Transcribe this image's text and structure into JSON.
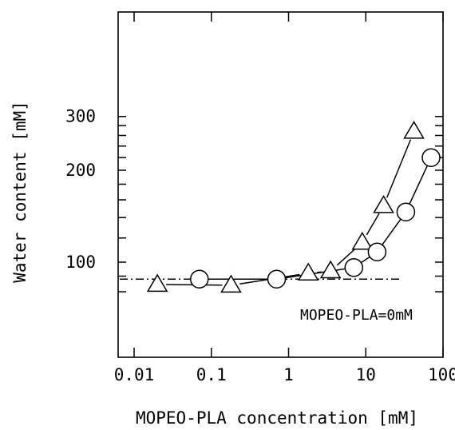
{
  "chart_data": {
    "type": "scatter",
    "xlabel": "MOPEO-PLA concentration [mM]",
    "ylabel": "Water content [mM]",
    "xscale": "log",
    "yscale": "log",
    "xlim": [
      0.01,
      100
    ],
    "ylim": [
      70,
      320
    ],
    "xticks": [
      0.01,
      0.1,
      1,
      10,
      100
    ],
    "xtick_labels": [
      "0.01",
      "0.1",
      "1",
      "10",
      "100"
    ],
    "yticks": [
      100,
      200,
      300
    ],
    "ytick_labels": [
      "100",
      "200",
      "300"
    ],
    "yminor_ticks": [
      80,
      90,
      100,
      120,
      140,
      160,
      180,
      200,
      220,
      240,
      260,
      280,
      300
    ],
    "grid": false,
    "series": [
      {
        "marker": "triangle",
        "x": [
          0.02,
          0.18,
          1.8,
          3.5,
          9.0,
          17.0,
          42.0
        ],
        "y": [
          84.5,
          84.0,
          92.0,
          93.5,
          116.0,
          153.0,
          268.0
        ]
      },
      {
        "marker": "circle",
        "x": [
          0.07,
          0.7,
          7.0,
          14.0,
          33.0,
          70.0
        ],
        "y": [
          88.0,
          88.0,
          96.0,
          108.0,
          146.0,
          220.0
        ]
      }
    ],
    "reference_line": {
      "y": 88.0,
      "x_start": 0.01,
      "x_end": 28.0,
      "style": "dash-dot"
    },
    "annotation": "MOPEO-PLA=0mM"
  }
}
